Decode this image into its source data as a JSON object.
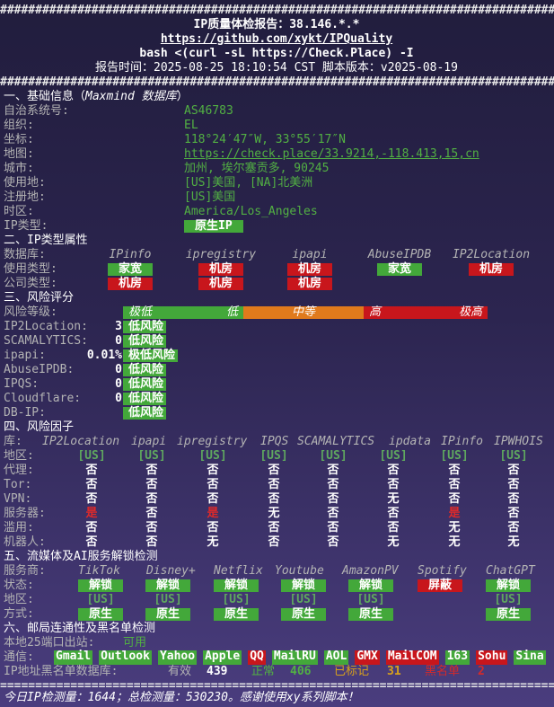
{
  "header": {
    "rule_top": "################################################################################",
    "title": "IP质量体检报告：38.146.*.*",
    "repo": "https://github.com/xykt/IPQuality",
    "command": "bash <(curl -sL https://Check.Place) -I",
    "report_time": "报告时间：2025-08-25 18:10:54 CST  脚本版本：v2025-08-19",
    "rule_bottom": "################################################################################"
  },
  "basic": {
    "title_prefix": "一、基础信息（",
    "source": "Maxmind 数据库",
    "title_suffix": "）",
    "rows": [
      {
        "label": "自治系统号:",
        "value": "AS46783"
      },
      {
        "label": "组织:",
        "value": "EL"
      },
      {
        "label": "坐标:",
        "value": "118°24′47″W, 33°55′17″N"
      },
      {
        "label": "地图:",
        "value": "https://check.place/33.9214,-118.413,15,cn",
        "link": true
      },
      {
        "label": "城市:",
        "value": "加州, 埃尔塞贡多, 90245"
      },
      {
        "label": "使用地:",
        "value": "[US]美国, [NA]北美洲"
      },
      {
        "label": "注册地:",
        "value": "[US]美国"
      },
      {
        "label": "时区:",
        "value": "America/Los_Angeles"
      }
    ],
    "ip_type": {
      "label": "IP类型:",
      "value": "原生IP",
      "background": "#43a83a"
    }
  },
  "ip_type": {
    "title": "二、IP类型属性",
    "db_label": "数据库:",
    "sources": [
      "IPinfo",
      "ipregistry",
      "ipapi",
      "AbuseIPDB",
      "IP2Location"
    ],
    "rows": [
      {
        "label": "使用类型:",
        "values": [
          {
            "text": "家宽",
            "background": "#43a83a"
          },
          {
            "text": "机房",
            "background": "#c8161c"
          },
          {
            "text": "机房",
            "background": "#c8161c"
          },
          {
            "text": "家宽",
            "background": "#43a83a"
          },
          {
            "text": "机房",
            "background": "#c8161c"
          }
        ]
      },
      {
        "label": "公司类型:",
        "values": [
          {
            "text": "机房",
            "background": "#c8161c"
          },
          {
            "text": "机房",
            "background": "#c8161c"
          },
          {
            "text": "机房",
            "background": "#c8161c"
          }
        ]
      }
    ]
  },
  "risk_score": {
    "title": "三、风险评分",
    "level_label": "风险等级:",
    "segments": [
      {
        "labels": [
          "极低",
          "低"
        ],
        "color": "#43a83a"
      },
      {
        "labels": [
          "中等"
        ],
        "color": "#e07a1c"
      },
      {
        "labels": [
          "高",
          "极高"
        ],
        "color": "#c8161c"
      }
    ],
    "rows": [
      {
        "label": "IP2Location:",
        "score": "3",
        "rating": "低风险",
        "background": "#43a83a"
      },
      {
        "label": "SCAMALYTICS:",
        "score": "0",
        "rating": "低风险",
        "background": "#43a83a"
      },
      {
        "label": "ipapi:",
        "score": "0.01%",
        "rating": "极低风险",
        "background": "#43a83a"
      },
      {
        "label": "AbuseIPDB:",
        "score": "0",
        "rating": "低风险",
        "background": "#43a83a"
      },
      {
        "label": "IPQS:",
        "score": "0",
        "rating": "低风险",
        "background": "#43a83a"
      },
      {
        "label": "Cloudflare:",
        "score": "0",
        "rating": "低风险",
        "background": "#43a83a"
      },
      {
        "label": "DB-IP:",
        "rating": "低风险",
        "background": "#43a83a"
      }
    ]
  },
  "risk_factors": {
    "title": "四、风险因子",
    "db_label": "库:",
    "sources": [
      "IP2Location",
      "ipapi",
      "ipregistry",
      "IPQS",
      "SCAMALYTICS",
      "ipdata",
      "IPinfo",
      "IPWHOIS"
    ],
    "rows": [
      {
        "label": "地区:",
        "color": "#5fa85f",
        "values": [
          "[US]",
          "[US]",
          "[US]",
          "[US]",
          "[US]",
          "[US]",
          "[US]",
          "[US]"
        ]
      },
      {
        "label": "代理:",
        "values": [
          "否",
          "否",
          "否",
          "否",
          "否",
          "否",
          "否",
          "否"
        ]
      },
      {
        "label": "Tor:",
        "values": [
          "否",
          "否",
          "否",
          "否",
          "否",
          "否",
          "否",
          "否"
        ]
      },
      {
        "label": "VPN:",
        "values": [
          "否",
          "否",
          "否",
          "否",
          "否",
          "无",
          "否",
          "否"
        ]
      },
      {
        "label": "服务器:",
        "values": [
          {
            "text": "是",
            "color": "#e02a2a"
          },
          "否",
          {
            "text": "是",
            "color": "#e02a2a"
          },
          "无",
          "否",
          "否",
          {
            "text": "是",
            "color": "#e02a2a"
          },
          "否"
        ]
      },
      {
        "label": "滥用:",
        "values": [
          "否",
          "否",
          "否",
          "否",
          "否",
          "否",
          "无",
          "否"
        ]
      },
      {
        "label": "机器人:",
        "values": [
          "否",
          "否",
          "无",
          "否",
          "否",
          "无",
          "无",
          "无"
        ]
      }
    ]
  },
  "streaming": {
    "title": "五、流媒体及AI服务解锁检测",
    "service_label": "服务商:",
    "services": [
      "TikTok",
      "Disney+",
      "Netflix",
      "Youtube",
      "AmazonPV",
      "Spotify",
      "ChatGPT"
    ],
    "rows": [
      {
        "label": "状态:",
        "values": [
          {
            "text": "解锁",
            "background": "#43a83a"
          },
          {
            "text": "解锁",
            "background": "#43a83a"
          },
          {
            "text": "解锁",
            "background": "#43a83a"
          },
          {
            "text": "解锁",
            "background": "#43a83a"
          },
          {
            "text": "解锁",
            "background": "#43a83a"
          },
          {
            "text": "屏蔽",
            "background": "#c8161c"
          },
          {
            "text": "解锁",
            "background": "#43a83a"
          }
        ]
      },
      {
        "label": "地区:",
        "color": "#5fa85f",
        "values": [
          "[US]",
          "[US]",
          "[US]",
          "[US]",
          "[US]",
          null,
          "[US]"
        ]
      },
      {
        "label": "方式:",
        "values": [
          {
            "text": "原生",
            "background": "#43a83a"
          },
          {
            "text": "原生",
            "background": "#43a83a"
          },
          {
            "text": "原生",
            "background": "#43a83a"
          },
          {
            "text": "原生",
            "background": "#43a83a"
          },
          {
            "text": "原生",
            "background": "#43a83a"
          },
          null,
          {
            "text": "原生",
            "background": "#43a83a"
          }
        ]
      }
    ]
  },
  "mail": {
    "title": "六、邮局连通性及黑名单检测",
    "port25_label": "本地25端口出站:",
    "port25_value": "可用",
    "services_label": "通信:",
    "services": [
      {
        "text": "Gmail",
        "background": "#43a83a"
      },
      {
        "text": "Outlook",
        "background": "#43a83a"
      },
      {
        "text": "Yahoo",
        "background": "#43a83a"
      },
      {
        "text": "Apple",
        "background": "#43a83a"
      },
      {
        "text": "QQ",
        "background": "#c8161c"
      },
      {
        "text": "MailRU",
        "background": "#43a83a"
      },
      {
        "text": "AOL",
        "background": "#43a83a"
      },
      {
        "text": "GMX",
        "background": "#c8161c"
      },
      {
        "text": "MailCOM",
        "background": "#c8161c"
      },
      {
        "text": "163",
        "background": "#43a83a"
      },
      {
        "text": "Sohu",
        "background": "#c8161c"
      },
      {
        "text": "Sina",
        "background": "#43a83a"
      }
    ],
    "blacklist_label": "IP地址黑名单数据库:",
    "blacklist": [
      {
        "label": "有效",
        "label_color": "#b4b4b4",
        "count": "439",
        "count_color": "#ffffff"
      },
      {
        "label": "正常",
        "label_color": "#52b043",
        "count": "406",
        "count_color": "#52b043"
      },
      {
        "label": "已标记",
        "label_color": "#d9a11c",
        "count": "31",
        "count_color": "#d9a11c"
      },
      {
        "label": "黑名单",
        "label_color": "#d42a2a",
        "count": "2",
        "count_color": "#d42a2a"
      }
    ]
  },
  "footer": {
    "rule": "================================================================================",
    "stats": "今日IP检测量：1644；总检测量：530230。感谢使用xy系列脚本！"
  }
}
